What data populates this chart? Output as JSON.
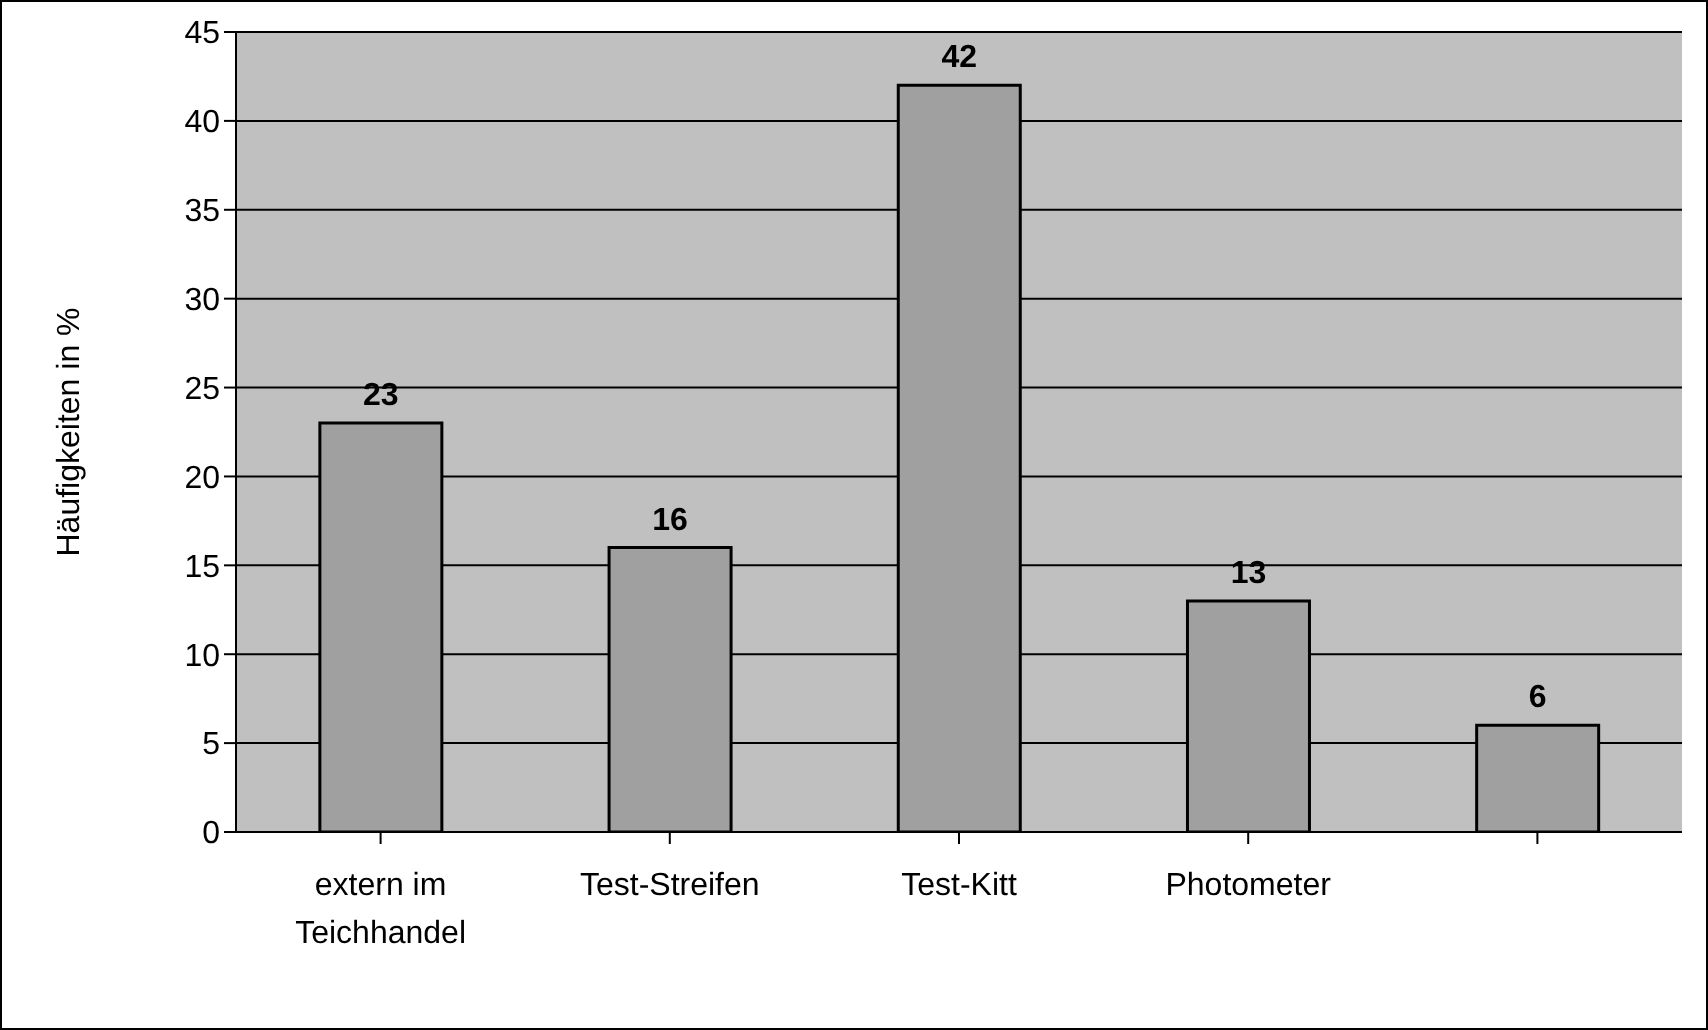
{
  "chart_data": {
    "type": "bar",
    "ylabel": "Häufigkeiten in %",
    "categories": [
      "extern im Teichhandel",
      "Test-Streifen",
      "Test-Kitt",
      "Photometer",
      null
    ],
    "values": [
      23,
      16,
      42,
      13,
      6
    ],
    "color": "#a0a0a0",
    "ylim": [
      0,
      45
    ],
    "yticks": [
      0,
      5,
      10,
      15,
      20,
      25,
      30,
      35,
      40,
      45
    ],
    "grid": "y",
    "data_labels": true
  }
}
